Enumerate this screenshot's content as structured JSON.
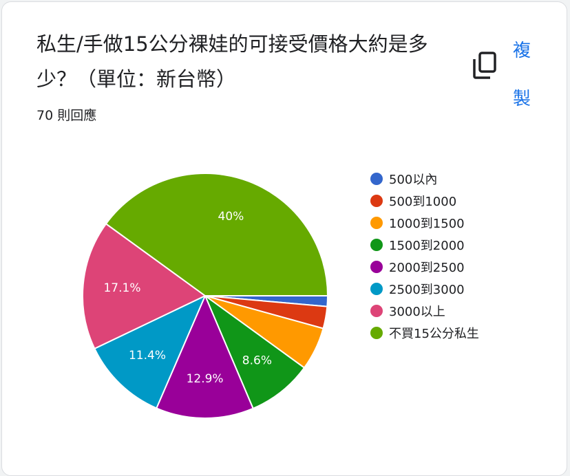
{
  "question": {
    "title": "私生/手做15公分裸娃的可接受價格大約是多少？（單位：新台幣）",
    "response_count": "70 則回應"
  },
  "toolbar": {
    "copy_label": [
      "複",
      "製"
    ],
    "copy_icon": "copy-icon"
  },
  "chart_data": {
    "type": "pie",
    "title": "",
    "categories": [
      "500以內",
      "500到1000",
      "1000到1500",
      "1500到2000",
      "2000到2500",
      "2500到3000",
      "3000以上",
      "不買15公分私生"
    ],
    "values": [
      1.4,
      2.9,
      5.7,
      8.6,
      12.9,
      11.4,
      17.1,
      40
    ],
    "labels": [
      "",
      "",
      "",
      "8.6%",
      "12.9%",
      "11.4%",
      "17.1%",
      "40%"
    ],
    "colors": [
      "#3366cc",
      "#dc3912",
      "#ff9900",
      "#109618",
      "#990099",
      "#0099c6",
      "#dd4477",
      "#66aa00"
    ],
    "legend_position": "right"
  }
}
